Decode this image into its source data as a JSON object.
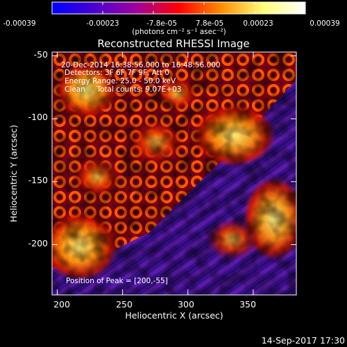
{
  "colorbar": {
    "tick_labels": [
      "-0.00039",
      "-0.00023",
      "-7.8e-05",
      "7.8e-05",
      "0.00023",
      "0.00039"
    ],
    "units_label": "(photons cm⁻² s⁻¹ asec⁻²)",
    "stops": [
      "#0000ff",
      "#4a00d2",
      "#a000a0",
      "#ff0000",
      "#ff8c00",
      "#ffff78",
      "#ffffff"
    ]
  },
  "image": {
    "title": "Reconstructed RHESSI Image",
    "annotations": [
      "20-Dec-2014 16:38:56.000 to 16:48:56.000",
      "Detectors: 3F 6F 7F 9F, Att 0",
      "Energy Range: 25.0 - 50.0 keV",
      "Clean     Total counts: 9.07E+03"
    ],
    "peak_label": "Position of Peak = [200,-55]",
    "xlabel": "Heliocentric X (arcsec)",
    "ylabel": "Heliocentric Y (arcsec)",
    "xticks": [
      "200",
      "250",
      "300",
      "350"
    ],
    "yticks": [
      "-50",
      "-100",
      "-150",
      "-200"
    ],
    "xlim": [
      196,
      383
    ],
    "ylim": [
      -240,
      -47
    ],
    "xtick_values": [
      200,
      250,
      300,
      350
    ],
    "ytick_values": [
      -50,
      -100,
      -150,
      -200
    ],
    "colormap": "red-temperature",
    "timestamp": "14-Sep-2017 17:30"
  }
}
